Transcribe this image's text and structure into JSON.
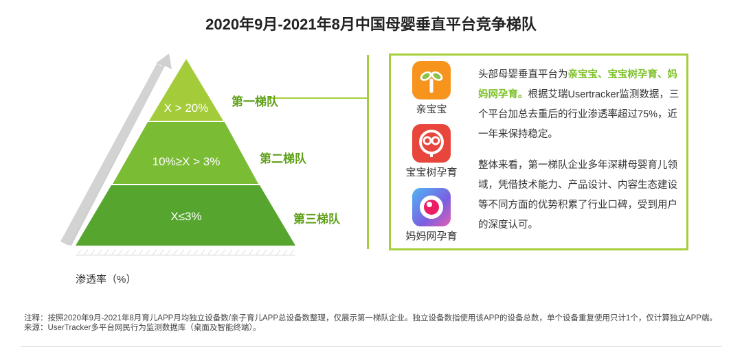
{
  "title": "2020年9月-2021年8月中国母婴垂直平台竞争梯队",
  "pyramid": {
    "tiers": [
      {
        "label": "第一梯队",
        "range": "X > 20%"
      },
      {
        "label": "第二梯队",
        "range": "10%≥X > 3%"
      },
      {
        "label": "第三梯队",
        "range": "X≤3%"
      }
    ],
    "axis_label": "渗透率（%）",
    "colors": {
      "tier1": "#a4cc3a",
      "tier2": "#7bbc35",
      "tier3": "#55a52f",
      "arrow": "#d0d0d0"
    }
  },
  "apps": [
    {
      "name": "亲宝宝",
      "icon": "qinbaobao-app-icon",
      "color": "#f7941d"
    },
    {
      "name": "宝宝树孕育",
      "icon": "babytree-app-icon",
      "color": "#e8453c"
    },
    {
      "name": "妈妈网孕育",
      "icon": "mama-app-icon",
      "color": "#6a5fd8"
    }
  ],
  "description": {
    "p1_prefix": "头部母婴垂直平台为",
    "p1_highlight": "亲宝宝、宝宝树孕育、妈妈网孕育。",
    "p1_suffix": "根据艾瑞Usertracker监测数据，三个平台加总去重后的行业渗透率超过75%，近一年来保持稳定。",
    "p2": "整体来看，第一梯队企业多年深耕母婴育儿领域，凭借技术能力、产品设计、内容生态建设等不同方面的优势积累了行业口碑，受到用户的深度认可。"
  },
  "notes": {
    "note": "注释：按照2020年9月-2021年8月育儿APP月均独立设备数/亲子育儿APP总设备数整理，仅展示第一梯队企业。独立设备数指使用该APP的设备总数，单个设备重复使用只计1个，仅计算独立APP端。",
    "source": "来源：UserTracker多平台网民行为监测数据库（桌面及智能终端）。"
  }
}
